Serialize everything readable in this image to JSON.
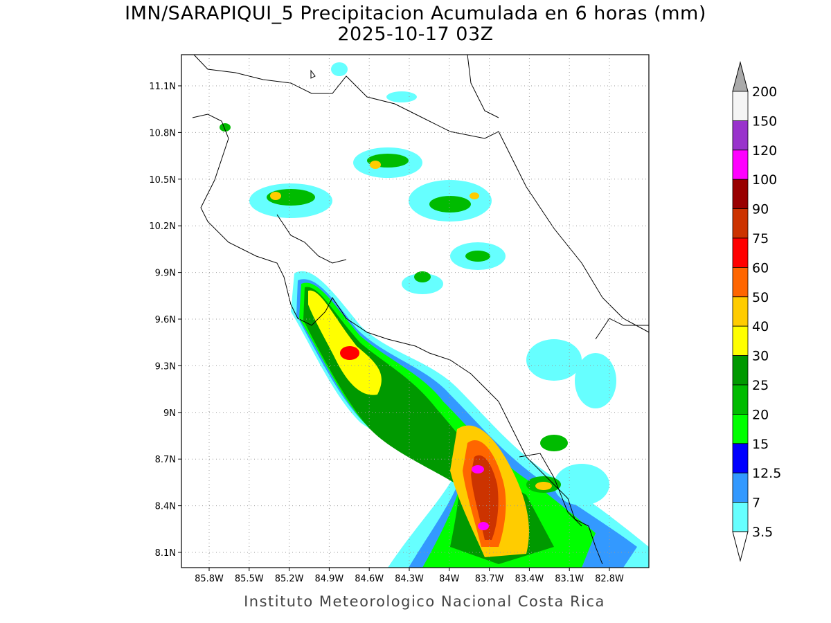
{
  "title": [
    "IMN/SARAPIQUI_5 Precipitacion Acumulada en 6 horas (mm)",
    "2025-10-17 03Z"
  ],
  "lat_labels": [
    "11.1N",
    "10.8N",
    "10.5N",
    "10.2N",
    "9.9N",
    "9.6N",
    "9.3N",
    "9N",
    "8.7N",
    "8.4N",
    "8.1N"
  ],
  "lon_labels": [
    "85.8W",
    "85.5W",
    "85.2W",
    "84.9W",
    "84.6W",
    "84.3W",
    "84W",
    "83.7W",
    "83.4W",
    "83.1W",
    "82.8W"
  ],
  "colorbar": {
    "labels": [
      "200",
      "150",
      "120",
      "100",
      "90",
      "75",
      "60",
      "50",
      "40",
      "30",
      "25",
      "20",
      "15",
      "12.5",
      "7",
      "3.5"
    ],
    "colors": [
      "#f5f5f5",
      "#9933cc",
      "#ff00ff",
      "#990000",
      "#cc3300",
      "#ff0000",
      "#ff6600",
      "#ffcc00",
      "#ffff00",
      "#009900",
      "#00bb00",
      "#00ff00",
      "#0000ff",
      "#3399ff",
      "#66ffff"
    ],
    "over_color": "#aaaaaa",
    "under_color": "#ffffff"
  },
  "footer": "Instituto Meteorologico Nacional Costa Rica"
}
